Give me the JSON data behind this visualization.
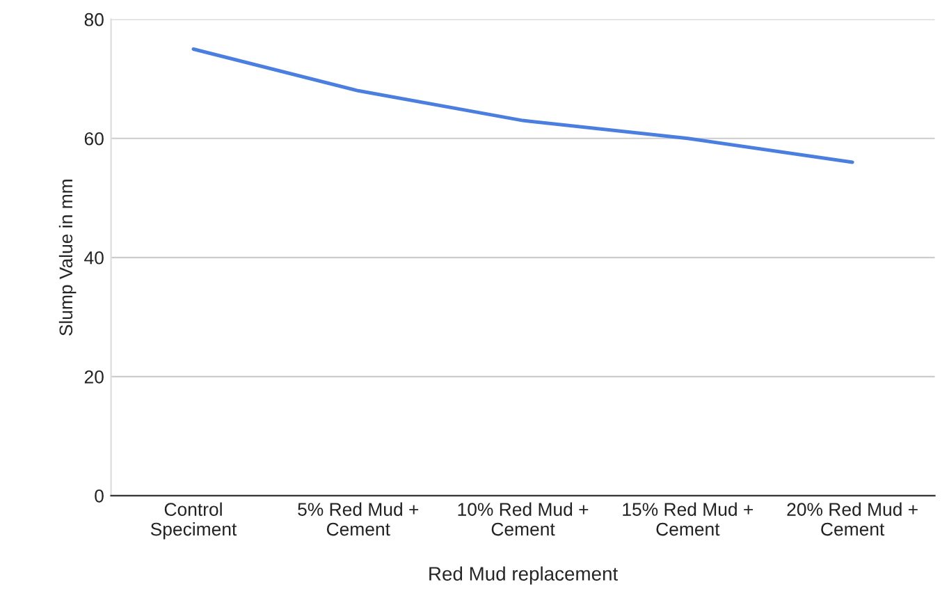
{
  "chart_data": {
    "type": "line",
    "xlabel": "Red Mud replacement",
    "ylabel": "Slump Value in mm",
    "categories": [
      "Control\nSpeciment",
      "5% Red Mud +\nCement",
      "10% Red Mud +\nCement",
      "15% Red Mud +\nCement",
      "20% Red Mud +\nCement"
    ],
    "series": [
      {
        "color": "#4a7fe0",
        "values": [
          75,
          68,
          63,
          60,
          56
        ]
      }
    ],
    "ylim": [
      0,
      80
    ],
    "yticks": [
      0,
      20,
      40,
      60,
      80
    ],
    "grid": "y",
    "marker": "none",
    "line_style": "solid"
  }
}
